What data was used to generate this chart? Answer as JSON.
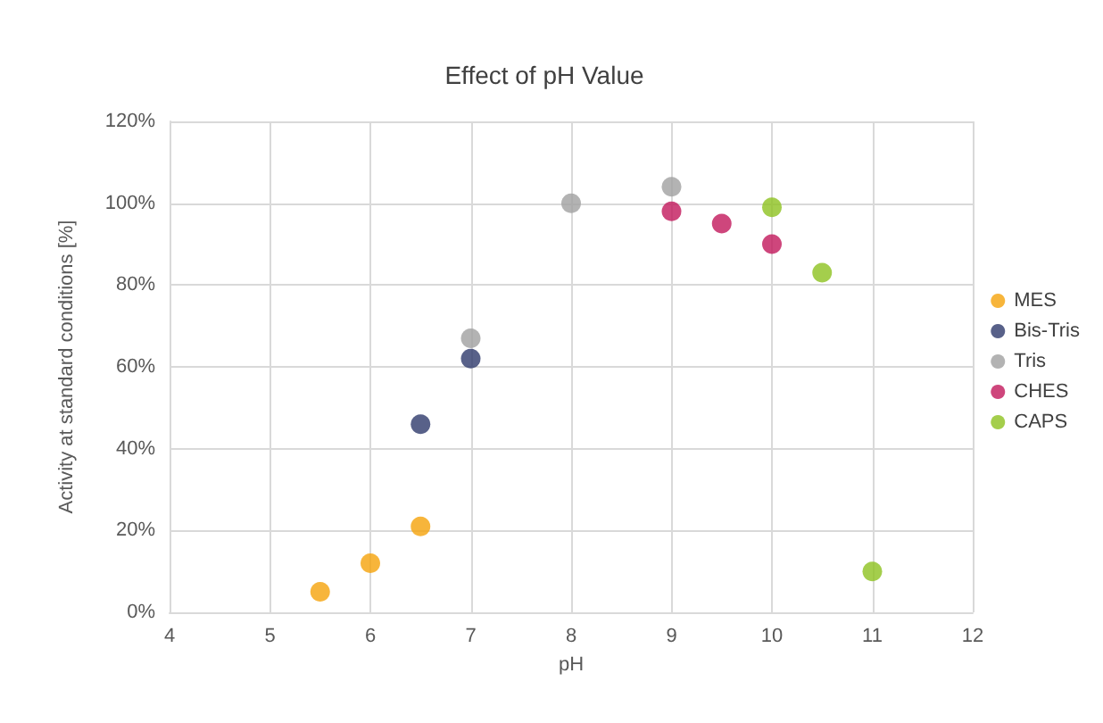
{
  "chart_data": {
    "type": "scatter",
    "title": "Effect of pH Value",
    "xlabel": "pH",
    "ylabel": "Activity at standard conditions [%]",
    "xlim": [
      4,
      12
    ],
    "xticks": [
      4,
      5,
      6,
      7,
      8,
      9,
      10,
      11,
      12
    ],
    "ylim": [
      0,
      120
    ],
    "yticks": [
      {
        "value": 0,
        "label": "0%"
      },
      {
        "value": 20,
        "label": "20%"
      },
      {
        "value": 40,
        "label": "40%"
      },
      {
        "value": 60,
        "label": "60%"
      },
      {
        "value": 80,
        "label": "80%"
      },
      {
        "value": 100,
        "label": "100%"
      },
      {
        "value": 120,
        "label": "120%"
      }
    ],
    "grid": true,
    "legend": "right",
    "marker": "circle",
    "series": [
      {
        "name": "MES",
        "color": "#f5a30a",
        "x": [
          5.5,
          6,
          6.5
        ],
        "values": [
          5,
          12,
          21
        ]
      },
      {
        "name": "Bis-Tris",
        "color": "#2e3a6b",
        "x": [
          6.5,
          7
        ],
        "values": [
          46,
          62
        ]
      },
      {
        "name": "Tris",
        "color": "#a0a0a0",
        "x": [
          7,
          8,
          9
        ],
        "values": [
          67,
          100,
          104
        ]
      },
      {
        "name": "CHES",
        "color": "#c2185b",
        "x": [
          9,
          9.5,
          10
        ],
        "values": [
          98,
          95,
          90
        ]
      },
      {
        "name": "CAPS",
        "color": "#8dc21f",
        "x": [
          10,
          10.5,
          11
        ],
        "values": [
          99,
          83,
          10
        ]
      }
    ]
  }
}
